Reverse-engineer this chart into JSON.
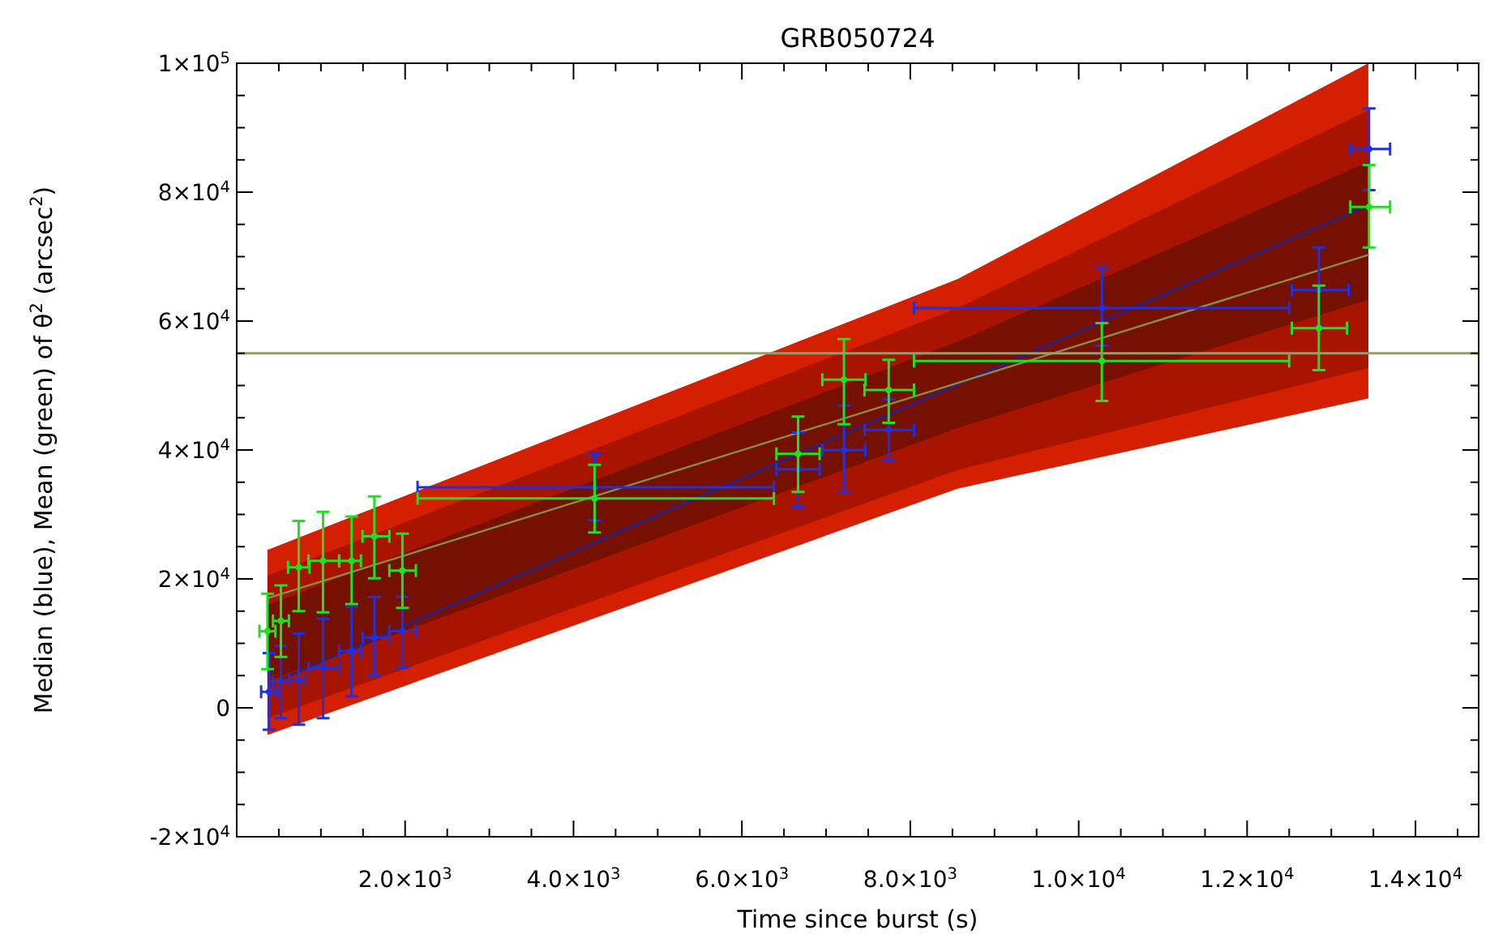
{
  "chart_data": {
    "type": "scatter",
    "title": "GRB050724",
    "xlabel": "Time since burst (s)",
    "ylabel": "Median (blue), Mean (green) of θ$^{2}$ (arcsec$^{2}$)",
    "xlim": [
      0,
      14750
    ],
    "ylim": [
      -20000,
      100000
    ],
    "xticks": [
      {
        "value": 500,
        "label": null
      },
      {
        "value": 1000,
        "label": null
      },
      {
        "value": 1500,
        "label": null
      },
      {
        "value": 2000,
        "label": "2.0×10$^{3}$"
      },
      {
        "value": 2500,
        "label": null
      },
      {
        "value": 3000,
        "label": null
      },
      {
        "value": 3500,
        "label": null
      },
      {
        "value": 4000,
        "label": "4.0×10$^{3}$"
      },
      {
        "value": 4500,
        "label": null
      },
      {
        "value": 5000,
        "label": null
      },
      {
        "value": 5500,
        "label": null
      },
      {
        "value": 6000,
        "label": "6.0×10$^{3}$"
      },
      {
        "value": 6500,
        "label": null
      },
      {
        "value": 7000,
        "label": null
      },
      {
        "value": 7500,
        "label": null
      },
      {
        "value": 8000,
        "label": "8.0×10$^{3}$"
      },
      {
        "value": 8500,
        "label": null
      },
      {
        "value": 9000,
        "label": null
      },
      {
        "value": 9500,
        "label": null
      },
      {
        "value": 10000,
        "label": "1.0×10$^{4}$"
      },
      {
        "value": 10500,
        "label": null
      },
      {
        "value": 11000,
        "label": null
      },
      {
        "value": 11500,
        "label": null
      },
      {
        "value": 12000,
        "label": "1.2×10$^{4}$"
      },
      {
        "value": 12500,
        "label": null
      },
      {
        "value": 13000,
        "label": null
      },
      {
        "value": 13500,
        "label": null
      },
      {
        "value": 14000,
        "label": "1.4×10$^{4}$"
      },
      {
        "value": 14500,
        "label": null
      }
    ],
    "yticks": [
      {
        "value": -20000,
        "label": "-2×10$^{4}$"
      },
      {
        "value": -15000,
        "label": null
      },
      {
        "value": -10000,
        "label": null
      },
      {
        "value": -5000,
        "label": null
      },
      0,
      {
        "value": 5000,
        "label": null
      },
      {
        "value": 10000,
        "label": null
      },
      {
        "value": 15000,
        "label": null
      },
      {
        "value": 20000,
        "label": "2×10$^{4}$"
      },
      {
        "value": 25000,
        "label": null
      },
      {
        "value": 30000,
        "label": null
      },
      {
        "value": 35000,
        "label": null
      },
      {
        "value": 40000,
        "label": "4×10$^{4}$"
      },
      {
        "value": 45000,
        "label": null
      },
      {
        "value": 50000,
        "label": null
      },
      {
        "value": 55000,
        "label": null
      },
      {
        "value": 60000,
        "label": "6×10$^{4}$"
      },
      {
        "value": 65000,
        "label": null
      },
      {
        "value": 70000,
        "label": null
      },
      {
        "value": 75000,
        "label": null
      },
      {
        "value": 80000,
        "label": "8×10$^{4}$"
      },
      {
        "value": 85000,
        "label": null
      },
      {
        "value": 90000,
        "label": null
      },
      {
        "value": 95000,
        "label": null
      },
      {
        "value": 100000,
        "label": "1×10$^{5}$"
      }
    ],
    "ref_lines": [
      {
        "axis": "y",
        "value": 55000,
        "color": "#9a9a6e"
      }
    ],
    "series": [
      {
        "type": "line",
        "color": "#d42000",
        "x": [
          365,
          8560,
          13440
        ],
        "values": [
          null,
          null,
          null
        ],
        "upper": [
          24500,
          66500,
          100000
        ],
        "lower": [
          -4200,
          34000,
          48000
        ]
      },
      {
        "type": "line",
        "color": "#a81400",
        "x": [
          365,
          8560,
          13440
        ],
        "values": [
          null,
          null,
          null
        ],
        "upper": [
          20500,
          62000,
          92700
        ],
        "lower": [
          -1600,
          36900,
          52700
        ]
      },
      {
        "type": "line",
        "color": "#761000",
        "x": [
          365,
          8560,
          13440
        ],
        "values": [
          null,
          null,
          null
        ],
        "upper": [
          15900,
          56800,
          84700
        ],
        "lower": [
          4100,
          43400,
          63300
        ]
      },
      {
        "type": "line",
        "color": "#1a24a0",
        "x": [
          385,
          13448
        ],
        "values": [
          3600,
          78000
        ]
      },
      {
        "type": "line",
        "color": "#8a8a4a",
        "x": [
          365,
          13448
        ],
        "values": [
          17000,
          70300
        ]
      },
      {
        "color": "#2030e0",
        "marker": "circle",
        "x": [
          385,
          525,
          737,
          1025,
          1365,
          1635,
          1968,
          4250,
          6667,
          7212,
          7744,
          10275,
          12852,
          13448
        ],
        "values": [
          2500,
          4100,
          4300,
          6200,
          8800,
          10900,
          11900,
          34200,
          37000,
          40000,
          43100,
          62000,
          64800,
          86700
        ],
        "errors": [
          [
            -3400,
            8500
          ],
          [
            -1600,
            9600
          ],
          [
            -2600,
            11500
          ],
          [
            -1600,
            13800
          ],
          [
            1800,
            15700
          ],
          [
            5000,
            17200
          ],
          [
            6200,
            17200
          ],
          [
            29100,
            39400
          ],
          [
            31100,
            42700
          ],
          [
            33500,
            46900
          ],
          [
            38400,
            47900
          ],
          [
            56200,
            68300
          ],
          [
            59000,
            71400
          ],
          [
            80300,
            93000
          ]
        ],
        "xerrors": [
          [
            290,
            480
          ],
          [
            429,
            621
          ],
          [
            621,
            813
          ],
          [
            852,
            1217
          ],
          [
            1217,
            1475
          ],
          [
            1494,
            1813
          ],
          [
            1813,
            2128
          ],
          [
            2148,
            6380
          ],
          [
            6410,
            6923
          ],
          [
            6955,
            7468
          ],
          [
            7456,
            8044
          ],
          [
            8044,
            12500
          ],
          [
            12532,
            13205
          ],
          [
            13225,
            13698
          ]
        ]
      },
      {
        "color": "#20e020",
        "marker": "circle",
        "x": [
          365,
          525,
          737,
          1025,
          1365,
          1635,
          1968,
          4250,
          6667,
          7212,
          7744,
          10275,
          12852,
          13448
        ],
        "values": [
          11900,
          13500,
          21800,
          22800,
          22800,
          26600,
          21300,
          32500,
          39400,
          50900,
          49300,
          53800,
          58900,
          77700
        ],
        "errors": [
          [
            6000,
            17700
          ],
          [
            7900,
            19000
          ],
          [
            15000,
            29000
          ],
          [
            14800,
            30400
          ],
          [
            16100,
            29700
          ],
          [
            20100,
            32800
          ],
          [
            15500,
            27000
          ],
          [
            27200,
            37700
          ],
          [
            33500,
            45200
          ],
          [
            44000,
            57200
          ],
          [
            44200,
            54000
          ],
          [
            47600,
            59700
          ],
          [
            52400,
            65500
          ],
          [
            71400,
            84200
          ]
        ],
        "xerrors": [
          [
            270,
            460
          ],
          [
            430,
            620
          ],
          [
            610,
            865
          ],
          [
            852,
            1217
          ],
          [
            1217,
            1475
          ],
          [
            1494,
            1813
          ],
          [
            1813,
            2128
          ],
          [
            2148,
            6380
          ],
          [
            6410,
            6923
          ],
          [
            6955,
            7468
          ],
          [
            7456,
            8044
          ],
          [
            8044,
            12500
          ],
          [
            12532,
            13187
          ],
          [
            13225,
            13698
          ]
        ]
      }
    ]
  }
}
